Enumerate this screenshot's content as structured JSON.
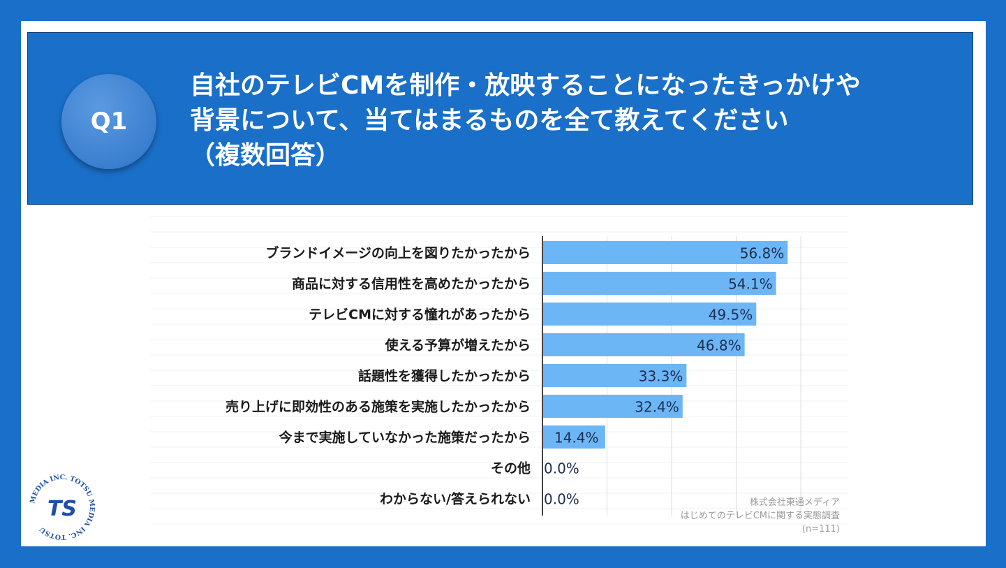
{
  "header": {
    "badge": "Q1",
    "question_line1": "自社のテレビCMを制作・放映することになったきっかけや",
    "question_line2": "背景について、当てはまるものを全て教えてください",
    "question_line3": "（複数回答）"
  },
  "chart_data": {
    "type": "bar",
    "orientation": "horizontal",
    "categories": [
      "ブランドイメージの向上を図りたかったから",
      "商品に対する信用性を高めたかったから",
      "テレビCMに対する憧れがあったから",
      "使える予算が増えたから",
      "話題性を獲得したかったから",
      "売り上げに即効性のある施策を実施したかったから",
      "今まで実施していなかった施策だったから",
      "その他",
      "わからない/答えられない"
    ],
    "values": [
      56.8,
      54.1,
      49.5,
      46.8,
      33.3,
      32.4,
      14.4,
      0.0,
      0.0
    ],
    "value_labels": [
      "56.8%",
      "54.1%",
      "49.5%",
      "46.8%",
      "33.3%",
      "32.4%",
      "14.4%",
      "0.0%",
      "0.0%"
    ],
    "xlim": [
      0,
      60
    ],
    "grid": true,
    "bar_color": "#6cb6f5",
    "title": "",
    "xlabel": "",
    "ylabel": ""
  },
  "source": {
    "line1": "株式会社東通メディア",
    "line2": "はじめてのテレビCMに関する実態調査",
    "line3": "(n=111)"
  },
  "logo": {
    "ring_text": "MEDIA INC. TOTSU MEDIA INC. TOTSU",
    "mark": "TS"
  },
  "colors": {
    "frame_blue": "#1a6fc9",
    "badge_blue": "#3b7fd0",
    "logo_blue": "#1f4fa8"
  }
}
